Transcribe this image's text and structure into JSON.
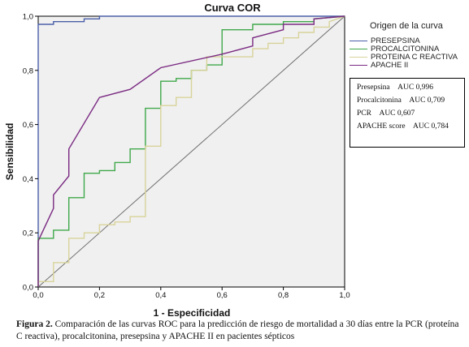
{
  "chart_data": {
    "type": "line",
    "title": "Curva COR",
    "xlabel": "1 - Especificidad",
    "ylabel": "Sensibilidad",
    "xlim": [
      0,
      1
    ],
    "ylim": [
      0,
      1
    ],
    "xticks": [
      "0,0",
      "0,2",
      "0,4",
      "0,6",
      "0,8",
      "1,0"
    ],
    "yticks": [
      "0,0",
      "0,2",
      "0,4",
      "0,6",
      "0,8",
      "1,0"
    ],
    "grid": false,
    "legend_title": "Origen de la curva",
    "legend_position": "right",
    "series": [
      {
        "name": "PRESEPSINA",
        "color": "#4a5fa8",
        "x": [
          0,
          0,
          0.05,
          0.05,
          0.15,
          0.15,
          0.2,
          0.2,
          1
        ],
        "y": [
          0,
          0.97,
          0.97,
          0.98,
          0.98,
          0.99,
          0.99,
          1,
          1
        ]
      },
      {
        "name": "PROCALCITONINA",
        "color": "#3fa84a",
        "x": [
          0,
          0,
          0.05,
          0.05,
          0.1,
          0.1,
          0.15,
          0.15,
          0.2,
          0.2,
          0.25,
          0.25,
          0.3,
          0.3,
          0.35,
          0.35,
          0.4,
          0.4,
          0.45,
          0.45,
          0.5,
          0.5,
          0.55,
          0.55,
          0.6,
          0.6,
          0.7,
          0.7,
          0.8,
          0.8,
          0.9,
          0.9,
          1
        ],
        "y": [
          0,
          0.18,
          0.18,
          0.21,
          0.21,
          0.33,
          0.33,
          0.42,
          0.42,
          0.43,
          0.43,
          0.46,
          0.46,
          0.51,
          0.51,
          0.66,
          0.66,
          0.76,
          0.76,
          0.77,
          0.77,
          0.8,
          0.8,
          0.82,
          0.82,
          0.95,
          0.95,
          0.97,
          0.97,
          0.98,
          0.98,
          0.99,
          1
        ]
      },
      {
        "name": "PROTEINA C REACTIVA",
        "color": "#d8d39a",
        "x": [
          0,
          0,
          0.05,
          0.05,
          0.1,
          0.1,
          0.15,
          0.15,
          0.2,
          0.2,
          0.25,
          0.25,
          0.3,
          0.3,
          0.35,
          0.35,
          0.4,
          0.4,
          0.45,
          0.45,
          0.5,
          0.5,
          0.55,
          0.55,
          0.7,
          0.7,
          0.75,
          0.75,
          0.8,
          0.8,
          0.85,
          0.85,
          0.9,
          0.9,
          0.95,
          0.95,
          1
        ],
        "y": [
          0,
          0.02,
          0.02,
          0.09,
          0.09,
          0.18,
          0.18,
          0.2,
          0.2,
          0.23,
          0.23,
          0.24,
          0.24,
          0.26,
          0.26,
          0.52,
          0.52,
          0.67,
          0.67,
          0.7,
          0.7,
          0.8,
          0.8,
          0.85,
          0.85,
          0.88,
          0.88,
          0.9,
          0.9,
          0.92,
          0.92,
          0.94,
          0.94,
          0.96,
          0.96,
          0.98,
          1
        ]
      },
      {
        "name": "APACHE II",
        "color": "#7a2a82",
        "x": [
          0,
          0,
          0.05,
          0.05,
          0.1,
          0.1,
          0.2,
          0.3,
          0.4,
          0.6,
          0.7,
          0.7,
          0.8,
          0.8,
          0.9,
          0.9,
          1
        ],
        "y": [
          0,
          0.17,
          0.29,
          0.34,
          0.41,
          0.51,
          0.7,
          0.73,
          0.81,
          0.86,
          0.89,
          0.92,
          0.95,
          0.97,
          0.97,
          0.99,
          1
        ]
      }
    ],
    "reference_line": {
      "x": [
        0,
        1
      ],
      "y": [
        0,
        1
      ],
      "color": "#6f6f6f"
    },
    "auc_table": [
      {
        "label": "Presepsina",
        "value": "AUC 0,996"
      },
      {
        "label": "Procalcitonina",
        "value": "AUC 0,709"
      },
      {
        "label": "PCR",
        "value": "AUC 0,607"
      },
      {
        "label": "APACHE score",
        "value": "AUC 0,784"
      }
    ]
  },
  "caption": {
    "prefix": "Figura 2.",
    "text": " Comparación de las curvas ROC para la predicción de riesgo de mortalidad a 30 días entre la PCR (proteína C reactiva), procalcitonina, presepsina y APACHE II en pacientes sépticos"
  }
}
